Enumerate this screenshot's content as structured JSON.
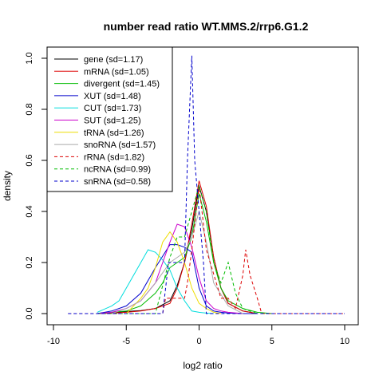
{
  "chart_data": {
    "type": "line",
    "title": "number read ratio WT.MMS.2/rrp6.G1.2",
    "xlabel": "log2 ratio",
    "ylabel": "density",
    "xlim": [
      -10,
      10
    ],
    "ylim": [
      0,
      1.0
    ],
    "xticks": [
      "-10",
      "-5",
      "0",
      "5",
      "10"
    ],
    "yticks": [
      "0.0",
      "0.2",
      "0.4",
      "0.6",
      "0.8",
      "1.0"
    ],
    "legend_position": "top-left",
    "series": [
      {
        "name": "gene (sd=1.17)",
        "color": "#000000",
        "dash": false,
        "x": [
          -7,
          -6,
          -5,
          -4,
          -3,
          -2,
          -1.5,
          -1,
          -0.5,
          0,
          0.5,
          1,
          1.5,
          2,
          3,
          4
        ],
        "y": [
          0,
          0.003,
          0.008,
          0.012,
          0.02,
          0.05,
          0.11,
          0.2,
          0.33,
          0.5,
          0.4,
          0.22,
          0.1,
          0.04,
          0.01,
          0
        ]
      },
      {
        "name": "mRNA (sd=1.05)",
        "color": "#dd0000",
        "dash": false,
        "x": [
          -7,
          -6,
          -5,
          -4,
          -3,
          -2,
          -1.5,
          -1,
          -0.5,
          0,
          0.5,
          1,
          1.5,
          2,
          3,
          4
        ],
        "y": [
          0,
          0.002,
          0.005,
          0.01,
          0.02,
          0.04,
          0.1,
          0.2,
          0.35,
          0.52,
          0.42,
          0.22,
          0.1,
          0.04,
          0.01,
          0
        ]
      },
      {
        "name": "divergent (sd=1.45)",
        "color": "#00bb00",
        "dash": false,
        "x": [
          -7,
          -5,
          -4,
          -3,
          -2.5,
          -2,
          -1.5,
          -1,
          -0.5,
          0,
          0.5,
          1,
          1.5,
          2,
          3,
          4,
          5
        ],
        "y": [
          0,
          0.01,
          0.03,
          0.08,
          0.12,
          0.18,
          0.2,
          0.22,
          0.3,
          0.47,
          0.36,
          0.2,
          0.1,
          0.05,
          0.02,
          0.005,
          0
        ]
      },
      {
        "name": "XUT (sd=1.48)",
        "color": "#0000cc",
        "dash": false,
        "x": [
          -7,
          -6,
          -5,
          -4,
          -3,
          -2,
          -1.5,
          -1,
          -0.5,
          0,
          0.5,
          1,
          1.5,
          2,
          3,
          4
        ],
        "y": [
          0,
          0.01,
          0.03,
          0.08,
          0.18,
          0.27,
          0.27,
          0.26,
          0.24,
          0.1,
          0.03,
          0.01,
          0.005,
          0.002,
          0,
          0
        ]
      },
      {
        "name": "CUT (sd=1.73)",
        "color": "#00dddd",
        "dash": false,
        "x": [
          -7,
          -6,
          -5.5,
          -5,
          -4.5,
          -4,
          -3.5,
          -3,
          -2.5,
          -2,
          -1.5,
          -1,
          -0.5,
          0,
          0.5,
          1
        ],
        "y": [
          0.005,
          0.03,
          0.05,
          0.1,
          0.15,
          0.2,
          0.25,
          0.24,
          0.21,
          0.17,
          0.1,
          0.05,
          0.01,
          0.005,
          0.002,
          0
        ]
      },
      {
        "name": "SUT (sd=1.25)",
        "color": "#cc00cc",
        "dash": false,
        "x": [
          -7,
          -6,
          -5,
          -4,
          -3,
          -2.5,
          -2,
          -1.5,
          -1,
          -0.5,
          0,
          0.5,
          1,
          1.5,
          2,
          3
        ],
        "y": [
          0,
          0.005,
          0.02,
          0.05,
          0.12,
          0.2,
          0.28,
          0.35,
          0.34,
          0.26,
          0.14,
          0.05,
          0.02,
          0.01,
          0.005,
          0
        ]
      },
      {
        "name": "tRNA (sd=1.26)",
        "color": "#eedd00",
        "dash": false,
        "x": [
          -5,
          -4,
          -3.5,
          -3,
          -2.5,
          -2,
          -1.5,
          -1,
          -0.5,
          0,
          0.5,
          1,
          1.5
        ],
        "y": [
          0,
          0.06,
          0.1,
          0.18,
          0.28,
          0.32,
          0.28,
          0.2,
          0.1,
          0.04,
          0.02,
          0.005,
          0
        ]
      },
      {
        "name": "snoRNA (sd=1.57)",
        "color": "#aaaaaa",
        "dash": false,
        "x": [
          -6,
          -5,
          -4,
          -3,
          -2.5,
          -2,
          -1.5,
          -1,
          -0.5,
          0,
          0.5,
          1,
          2,
          3
        ],
        "y": [
          0,
          0.02,
          0.05,
          0.12,
          0.16,
          0.2,
          0.22,
          0.24,
          0.3,
          0.4,
          0.28,
          0.12,
          0.03,
          0
        ]
      },
      {
        "name": "rRNA (sd=1.82)",
        "color": "#dd0000",
        "dash": true,
        "x": [
          -9,
          -2.5,
          -2.3,
          -1,
          -0.8,
          -0.5,
          0,
          0.5,
          1.5,
          2,
          2.5,
          3,
          3.2,
          3.5,
          4,
          4.3,
          10
        ],
        "y": [
          0,
          0,
          0.06,
          0.06,
          0.12,
          0.25,
          0.5,
          0.25,
          0.06,
          0.06,
          0.02,
          0.15,
          0.25,
          0.15,
          0.06,
          0,
          0
        ]
      },
      {
        "name": "ncRNA (sd=0.99)",
        "color": "#00bb00",
        "dash": true,
        "x": [
          -7,
          -3,
          -2,
          -1.5,
          -1,
          -0.5,
          0,
          0.5,
          1,
          1.5,
          2,
          2.5,
          3,
          4
        ],
        "y": [
          0,
          0,
          0.22,
          0.3,
          0.3,
          0.4,
          0.5,
          0.4,
          0.2,
          0.12,
          0.2,
          0.08,
          0.02,
          0
        ]
      },
      {
        "name": "snRNA (sd=0.58)",
        "color": "#0000cc",
        "dash": true,
        "x": [
          -9,
          -2.5,
          -2.1,
          -1.5,
          -1,
          -0.8,
          -0.5,
          -0.3,
          0,
          0.3,
          0.5,
          0.7,
          10
        ],
        "y": [
          0,
          0,
          0.2,
          0.2,
          0.2,
          0.6,
          1.01,
          0.6,
          0.4,
          0.2,
          0,
          0,
          0
        ]
      }
    ]
  }
}
